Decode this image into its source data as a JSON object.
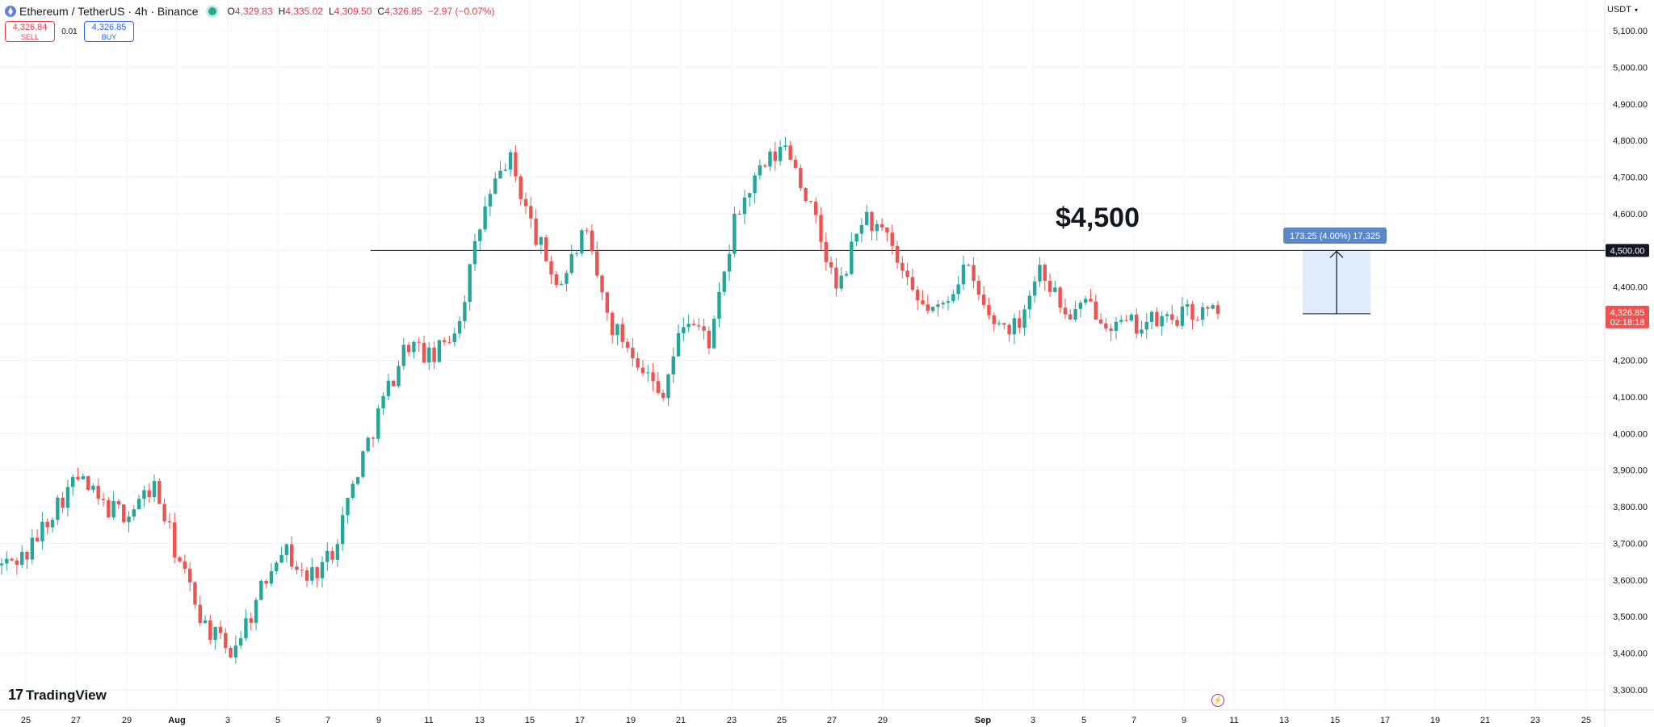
{
  "header": {
    "title": "Ethereum / TetherUS · 4h · Binance",
    "ohlc": [
      {
        "label": "O",
        "value": "4,329.83"
      },
      {
        "label": "H",
        "value": "4,335.02"
      },
      {
        "label": "L",
        "value": "4,309.50"
      },
      {
        "label": "C",
        "value": "4,326.85"
      },
      {
        "label": "",
        "value": "−2.97 (−0.07%)"
      }
    ]
  },
  "trade": {
    "sell_price": "4,326.84",
    "sell_label": "SELL",
    "spread": "0.01",
    "buy_price": "4,326.85",
    "buy_label": "BUY"
  },
  "currency": "USDT",
  "watermark": "TradingView",
  "colors": {
    "up": "#26a69a",
    "down": "#ef5350",
    "accent": "#2962ff",
    "projection": "#d5e6fb"
  },
  "chart_data": {
    "type": "candlestick",
    "title": "Ethereum / TetherUS · 4h · Binance",
    "ylim": [
      3270,
      5150
    ],
    "y_ticks": [
      "5,100.00",
      "5,000.00",
      "4,900.00",
      "4,800.00",
      "4,700.00",
      "4,600.00",
      "4,500.00",
      "4,400.00",
      "4,300.00",
      "4,200.00",
      "4,100.00",
      "4,000.00",
      "3,900.00",
      "3,800.00",
      "3,700.00",
      "3,600.00",
      "3,500.00",
      "3,400.00",
      "3,300.00"
    ],
    "x_ticks": [
      "25",
      "27",
      "29",
      "Aug",
      "3",
      "5",
      "7",
      "9",
      "11",
      "13",
      "15",
      "17",
      "19",
      "21",
      "23",
      "25",
      "27",
      "29",
      "Sep",
      "3",
      "5",
      "7",
      "9",
      "11",
      "13",
      "15",
      "17",
      "19",
      "21",
      "23",
      "25"
    ],
    "bold_x_ticks": [
      "Aug",
      "Sep"
    ],
    "candle_count": 240,
    "anchor_points": [
      {
        "date": "Jul 24",
        "price": 3640
      },
      {
        "date": "Jul 25",
        "price": 3670
      },
      {
        "date": "Jul 27",
        "price": 3790
      },
      {
        "date": "Jul 28",
        "price": 3880
      },
      {
        "date": "Jul 29",
        "price": 3800
      },
      {
        "date": "Jul 30",
        "price": 3780
      },
      {
        "date": "Jul 31",
        "price": 3860
      },
      {
        "date": "Aug 1",
        "price": 3650
      },
      {
        "date": "Aug 2",
        "price": 3480
      },
      {
        "date": "Aug 3",
        "price": 3400
      },
      {
        "date": "Aug 4",
        "price": 3530
      },
      {
        "date": "Aug 5",
        "price": 3700
      },
      {
        "date": "Aug 6",
        "price": 3600
      },
      {
        "date": "Aug 7",
        "price": 3670
      },
      {
        "date": "Aug 8",
        "price": 3890
      },
      {
        "date": "Aug 9",
        "price": 4080
      },
      {
        "date": "Aug 10",
        "price": 4250
      },
      {
        "date": "Aug 11",
        "price": 4200
      },
      {
        "date": "Aug 12",
        "price": 4300
      },
      {
        "date": "Aug 13",
        "price": 4600
      },
      {
        "date": "Aug 14",
        "price": 4760
      },
      {
        "date": "Aug 15",
        "price": 4550
      },
      {
        "date": "Aug 16",
        "price": 4400
      },
      {
        "date": "Aug 17",
        "price": 4550
      },
      {
        "date": "Aug 18",
        "price": 4300
      },
      {
        "date": "Aug 19",
        "price": 4220
      },
      {
        "date": "Aug 20",
        "price": 4100
      },
      {
        "date": "Aug 21",
        "price": 4320
      },
      {
        "date": "Aug 22",
        "price": 4250
      },
      {
        "date": "Aug 22 end",
        "price": 4600
      },
      {
        "date": "Aug 23",
        "price": 4720
      },
      {
        "date": "Aug 24",
        "price": 4790
      },
      {
        "date": "Aug 25",
        "price": 4600
      },
      {
        "date": "Aug 26",
        "price": 4380
      },
      {
        "date": "Aug 27",
        "price": 4600
      },
      {
        "date": "Aug 28",
        "price": 4520
      },
      {
        "date": "Aug 29",
        "price": 4360
      },
      {
        "date": "Aug 30",
        "price": 4330
      },
      {
        "date": "Aug 31",
        "price": 4460
      },
      {
        "date": "Sep 1",
        "price": 4310
      },
      {
        "date": "Sep 2",
        "price": 4290
      },
      {
        "date": "Sep 3",
        "price": 4460
      },
      {
        "date": "Sep 4",
        "price": 4320
      },
      {
        "date": "Sep 5",
        "price": 4350
      },
      {
        "date": "Sep 6",
        "price": 4290
      },
      {
        "date": "Sep 7",
        "price": 4300
      },
      {
        "date": "Sep 8",
        "price": 4310
      },
      {
        "date": "Sep 9",
        "price": 4330
      },
      {
        "date": "Sep 10",
        "price": 4326.85
      }
    ],
    "annotations": {
      "level_label": "$4,500",
      "level_price": 4500,
      "level_price_label": "4,500.00",
      "current_price": 4326.85,
      "current_price_label": "4,326.85",
      "countdown": "02:18:18",
      "measure_label": "173.25 (4.00%) 17,325"
    },
    "grid": true,
    "legend": "none"
  }
}
